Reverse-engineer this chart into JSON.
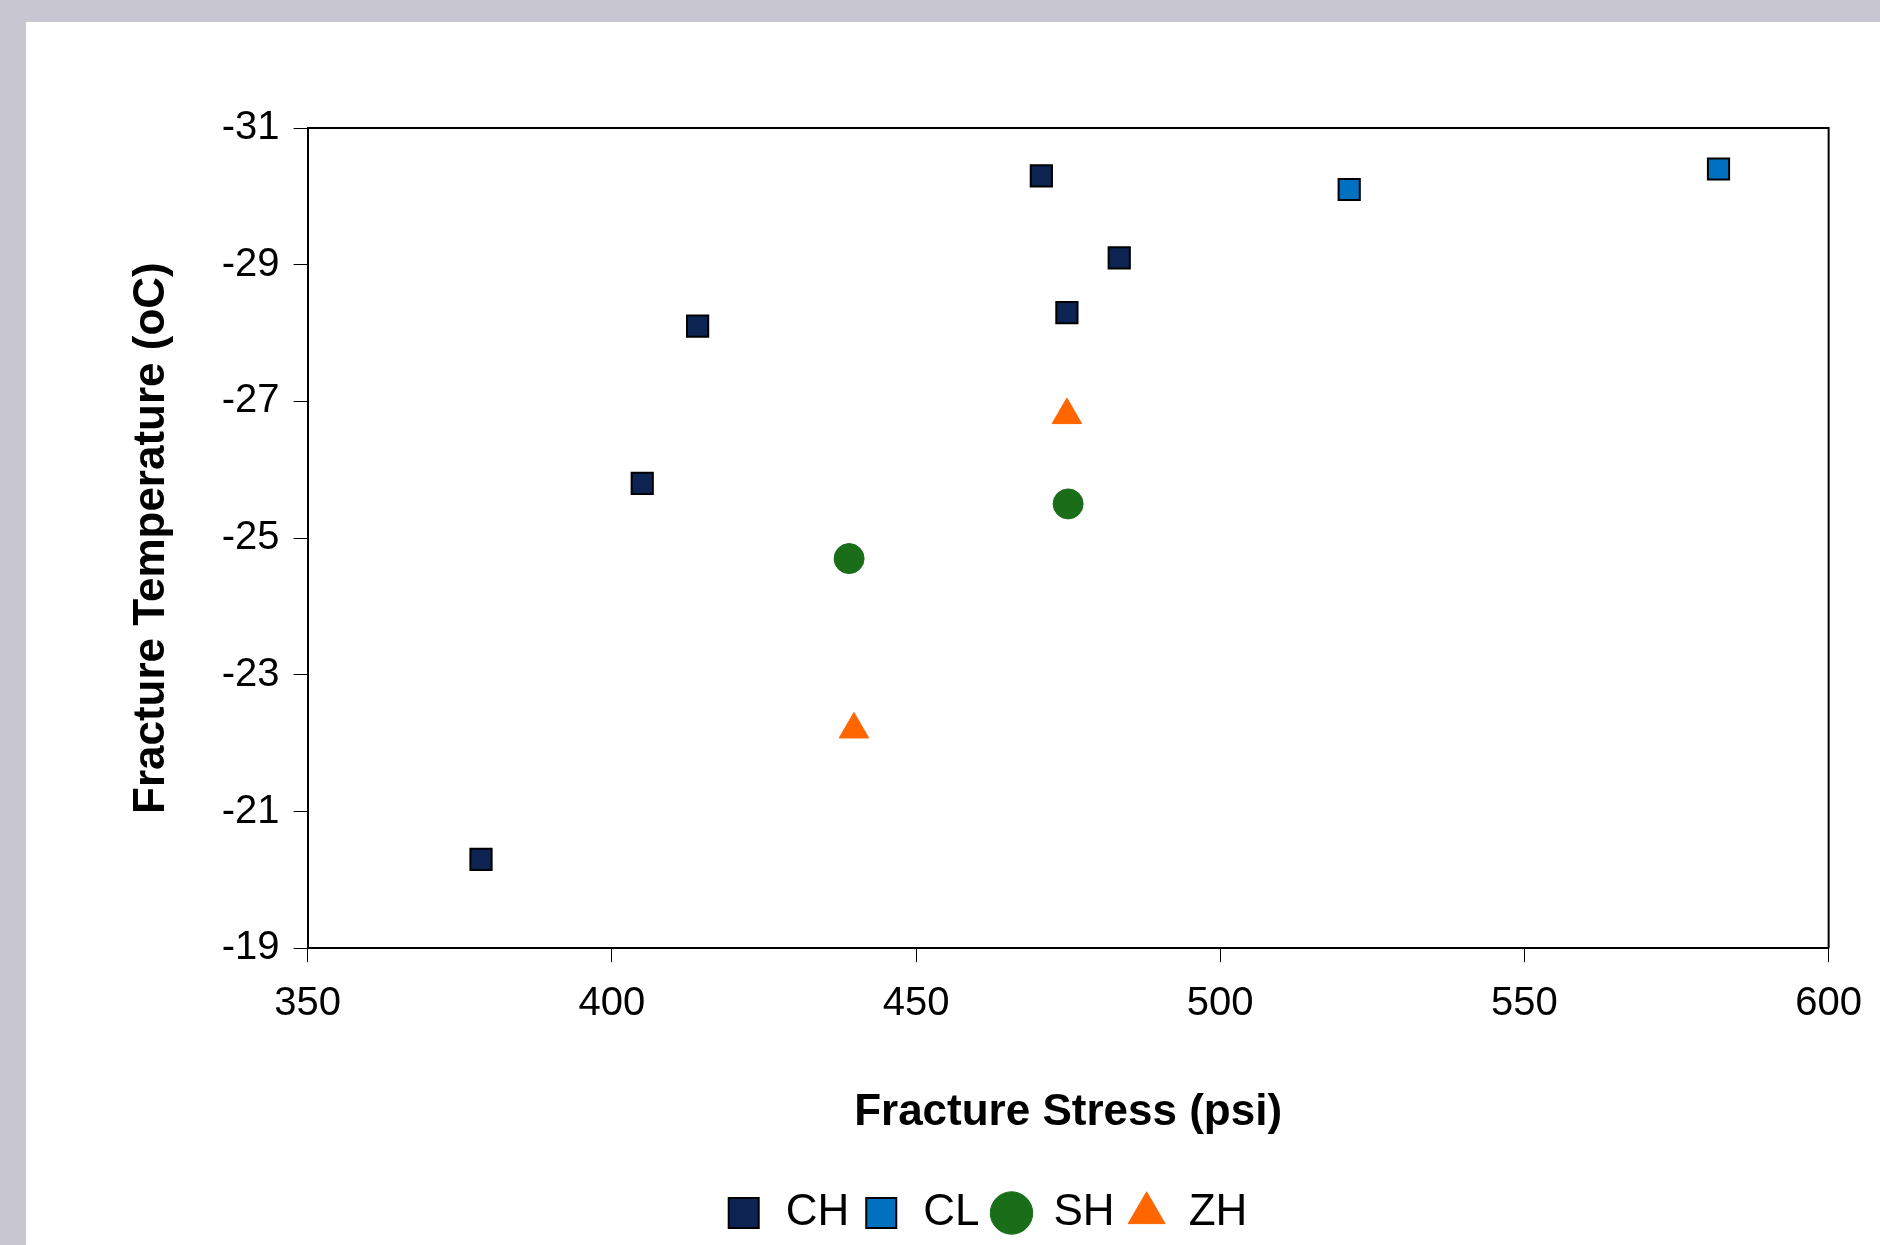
{
  "chart_data": {
    "type": "scatter",
    "xlabel": "Fracture Stress (psi)",
    "ylabel": "Fracture Temperature (oC)",
    "xlim": [
      350,
      600
    ],
    "xticks": [
      350,
      400,
      450,
      500,
      550,
      600
    ],
    "ylim": [
      -19,
      -31
    ],
    "yticks": [
      -31,
      -29,
      -27,
      -25,
      -23,
      -21,
      -19
    ],
    "grid": false,
    "legend": "bottom",
    "series": [
      {
        "name": "CH",
        "color": "#0d2452",
        "marker": "square",
        "x": [
          378.5,
          405,
          414.1,
          470.6,
          483.4,
          474.8
        ],
        "values": [
          -20.3,
          -25.8,
          -28.1,
          -30.3,
          -29.1,
          -28.3
        ]
      },
      {
        "name": "CL",
        "color": "#0070c0",
        "marker": "square",
        "x": [
          521.2,
          581.9
        ],
        "values": [
          -30.1,
          -30.4
        ]
      },
      {
        "name": "SH",
        "color": "#1a6e1a",
        "marker": "circle",
        "x": [
          439,
          475
        ],
        "values": [
          -24.7,
          -25.5
        ]
      },
      {
        "name": "ZH",
        "color": "#ff6600",
        "marker": "triangle",
        "x": [
          439.8,
          474.8
        ],
        "values": [
          -22.2,
          -26.8
        ]
      }
    ]
  }
}
